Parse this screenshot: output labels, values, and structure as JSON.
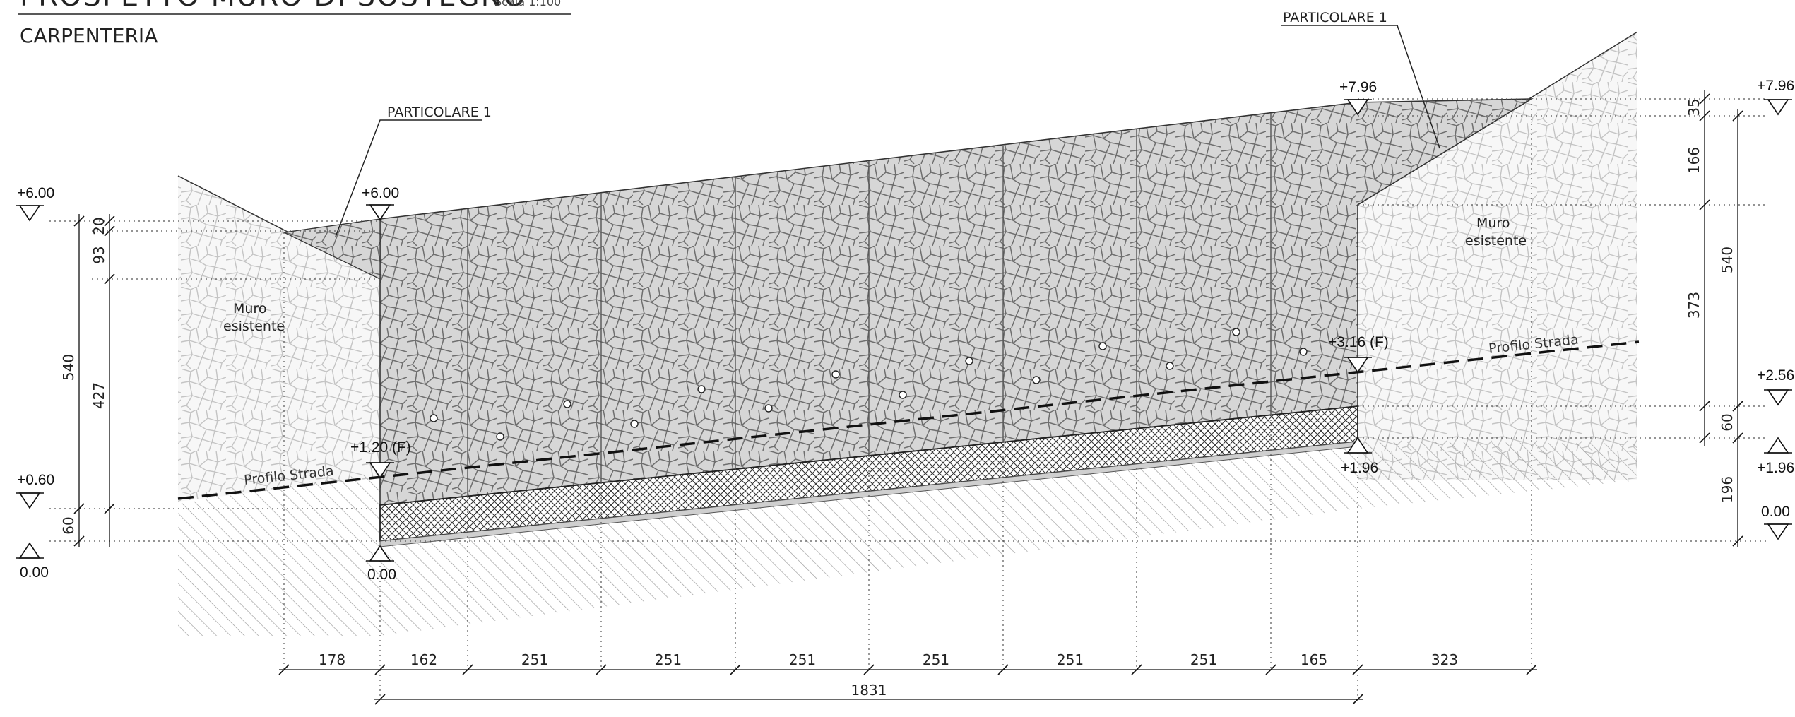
{
  "header": {
    "title": "PROSPETTO MURO DI SOSTEGNO",
    "scale": "Scala 1:100",
    "subtitle": "CARPENTERIA"
  },
  "labels": {
    "detail_left": "PARTICOLARE 1",
    "detail_right": "PARTICOLARE 1",
    "existing_left": [
      "Muro",
      "esistente"
    ],
    "existing_right": [
      "Muro",
      "esistente"
    ],
    "road_left": "Profilo Strada",
    "road_right": "Profilo Strada"
  },
  "levels": {
    "left_top": "+6.00",
    "left_mid": "+0.60",
    "left_bottom": "0.00",
    "wall_left_top": "+6.00",
    "wall_left_road": "+1.20 (F)",
    "wall_left_base": "0.00",
    "wall_right_top": "+7.96",
    "wall_right_road": "+3.16 (F)",
    "wall_right_base": "+1.96",
    "right_top": "+7.96",
    "right_road": "+2.56",
    "right_mid": "+1.96",
    "right_bottom": "0.00"
  },
  "dims_left": {
    "total": "540",
    "d1": "20",
    "d2": "93",
    "d3": "427",
    "d4": "60"
  },
  "dims_right": {
    "total": "540",
    "d1": "35",
    "d2": "166",
    "d3": "373",
    "d4": "60",
    "d5": "196"
  },
  "dims_bottom": {
    "segments": [
      "178",
      "162",
      "251",
      "251",
      "251",
      "251",
      "251",
      "251",
      "165",
      "323"
    ],
    "total": "1831"
  },
  "colors": {
    "stone_fill": "#d6d6d6",
    "existing_fill": "#f6f6f6",
    "hatch": "#9a9a9a",
    "line": "#222222"
  }
}
